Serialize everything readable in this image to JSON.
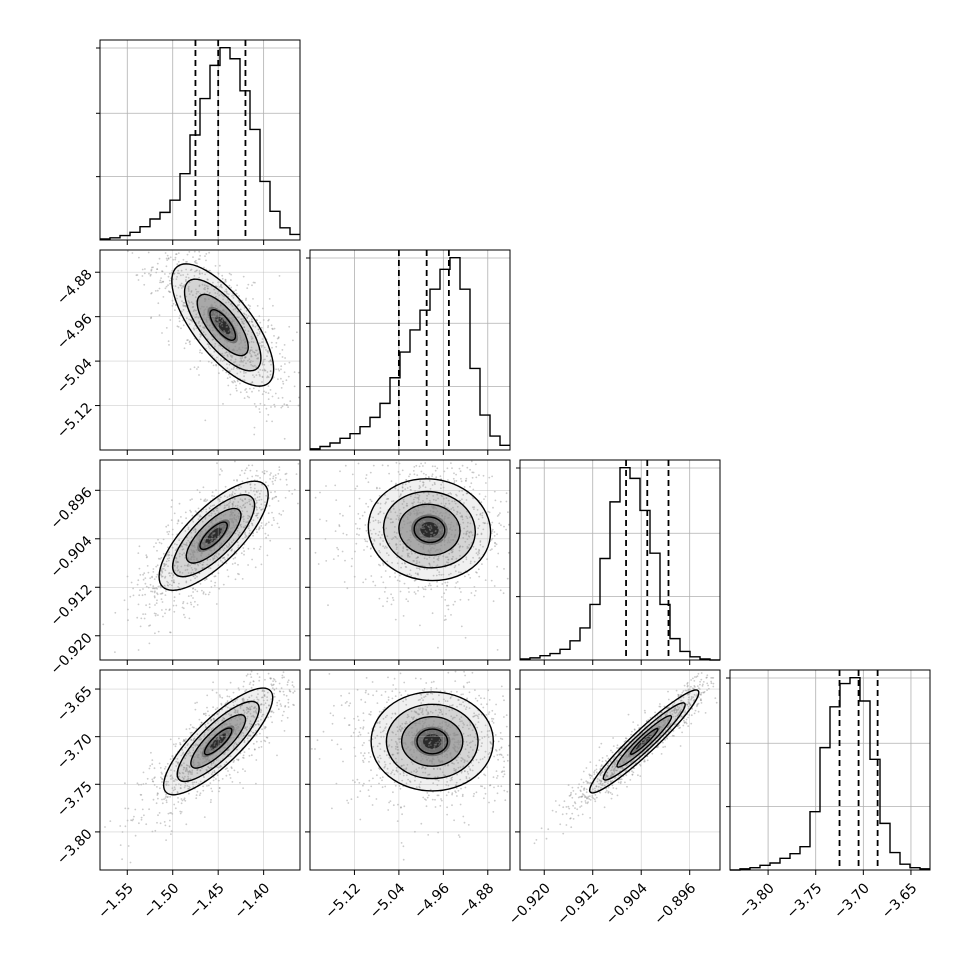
{
  "figure": {
    "type": "corner-plot",
    "n_params": 4
  },
  "chart_data": {
    "type": "corner",
    "dimensions": [
      {
        "key": "p0",
        "range": [
          -1.58,
          -1.36
        ],
        "ticks": [
          -1.55,
          -1.5,
          -1.45,
          -1.4
        ],
        "tick_labels": [
          "−1.55",
          "−1.50",
          "−1.45",
          "−1.40"
        ],
        "quantiles": [
          -1.475,
          -1.45,
          -1.42
        ],
        "histogram": {
          "edges_start": -1.58,
          "bin_width": 0.011,
          "counts": [
            1,
            2,
            4,
            7,
            12,
            19,
            25,
            36,
            60,
            95,
            128,
            158,
            174,
            164,
            135,
            100,
            53,
            26,
            11,
            5
          ]
        }
      },
      {
        "key": "p1",
        "range": [
          -5.2,
          -4.84
        ],
        "ticks": [
          -5.12,
          -5.04,
          -4.96,
          -4.88
        ],
        "tick_labels": [
          "−5.12",
          "−5.04",
          "−4.96",
          "−4.88"
        ],
        "quantiles": [
          -5.04,
          -4.99,
          -4.95
        ],
        "histogram": {
          "edges_start": -5.2,
          "bin_width": 0.018,
          "counts": [
            1,
            3,
            6,
            10,
            14,
            20,
            28,
            40,
            62,
            84,
            103,
            120,
            138,
            155,
            165,
            138,
            70,
            30,
            12,
            4
          ]
        }
      },
      {
        "key": "p2",
        "range": [
          -0.924,
          -0.891
        ],
        "ticks": [
          -0.92,
          -0.912,
          -0.904,
          -0.896
        ],
        "tick_labels": [
          "−0.920",
          "−0.912",
          "−0.904",
          "−0.896"
        ],
        "quantiles": [
          -0.9065,
          -0.903,
          -0.8995
        ],
        "histogram": {
          "edges_start": -0.924,
          "bin_width": 0.00165,
          "counts": [
            1,
            2,
            4,
            6,
            10,
            18,
            30,
            52,
            95,
            148,
            180,
            170,
            140,
            100,
            52,
            20,
            8,
            3,
            1,
            0
          ]
        }
      },
      {
        "key": "p3",
        "range": [
          -3.84,
          -3.63
        ],
        "ticks": [
          -3.8,
          -3.75,
          -3.7,
          -3.65
        ],
        "tick_labels": [
          "−3.80",
          "−3.75",
          "−3.70",
          "−3.65"
        ],
        "quantiles": [
          -3.725,
          -3.705,
          -3.685
        ],
        "histogram": {
          "edges_start": -3.84,
          "bin_width": 0.0105,
          "counts": [
            0,
            1,
            2,
            4,
            6,
            10,
            14,
            20,
            50,
            105,
            140,
            160,
            165,
            145,
            95,
            40,
            15,
            5,
            2,
            1
          ]
        }
      }
    ],
    "pairs": [
      {
        "x": 0,
        "y": 1,
        "center": [
          -1.445,
          -4.975
        ],
        "sd": [
          0.028,
          0.055
        ],
        "rho": -0.72,
        "n_points": 1100
      },
      {
        "x": 0,
        "y": 2,
        "center": [
          -1.455,
          -0.9035
        ],
        "sd": [
          0.03,
          0.0045
        ],
        "rho": 0.75,
        "n_points": 1100
      },
      {
        "x": 1,
        "y": 2,
        "center": [
          -4.985,
          -0.9025
        ],
        "sd": [
          0.055,
          0.0042
        ],
        "rho": -0.05,
        "n_points": 1100
      },
      {
        "x": 0,
        "y": 3,
        "center": [
          -1.45,
          -3.705
        ],
        "sd": [
          0.03,
          0.028
        ],
        "rho": 0.82,
        "n_points": 1100
      },
      {
        "x": 1,
        "y": 3,
        "center": [
          -4.98,
          -3.705
        ],
        "sd": [
          0.055,
          0.026
        ],
        "rho": 0.0,
        "n_points": 1100
      },
      {
        "x": 2,
        "y": 3,
        "center": [
          -0.9035,
          -3.705
        ],
        "sd": [
          0.0045,
          0.027
        ],
        "rho": 0.95,
        "n_points": 1100
      }
    ],
    "contour_levels_sigma": [
      0.5,
      1.0,
      1.5,
      2.0
    ],
    "grid": true,
    "colors": {
      "histogram": "#000000",
      "contour": "#000000",
      "points": "#8c8c8c",
      "grid": "#b0b0b0",
      "quantile_line": "#000000"
    }
  }
}
